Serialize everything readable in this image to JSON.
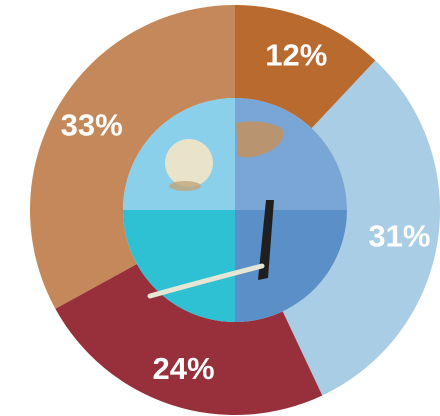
{
  "chart_data": {
    "type": "pie",
    "subtype": "donut",
    "slices": [
      {
        "label": "12%",
        "value": 12,
        "color": "#b86a2f"
      },
      {
        "label": "31%",
        "value": 31,
        "color": "#a9cde4"
      },
      {
        "label": "24%",
        "value": 24,
        "color": "#97303a"
      },
      {
        "label": "33%",
        "value": 33,
        "color": "#c5885a"
      }
    ],
    "center_photo_colors": {
      "upper_left": "#8ad0ea",
      "upper_right": "#79a6d4",
      "lower_left": "#2ec0d3",
      "lower_right": "#5b8fc7"
    },
    "legend": "none",
    "title": ""
  }
}
